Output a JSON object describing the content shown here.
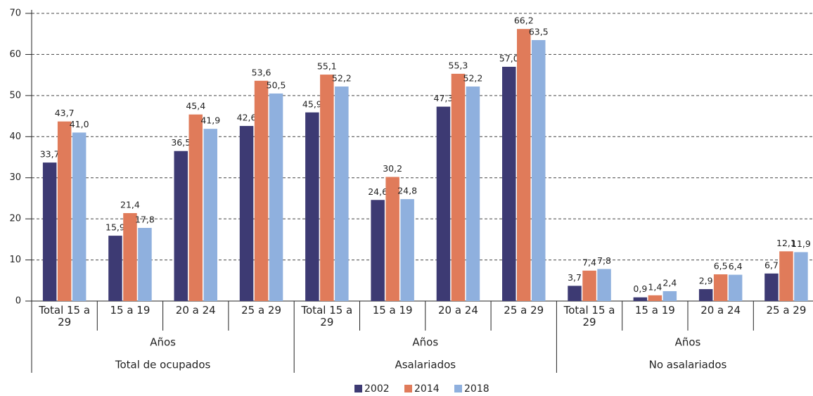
{
  "chart_data": {
    "type": "bar",
    "categories": [
      "Total 15 a 29",
      "15 a 19",
      "20 a 24",
      "25 a 29",
      "Total 15 a 29",
      "15 a 19",
      "20 a 24",
      "25 a 29",
      "Total 15 a 29",
      "15 a 19",
      "20 a 24",
      "25 a 29"
    ],
    "groups": [
      {
        "name": "Total de ocupados",
        "label": "Años"
      },
      {
        "name": "Asalariados",
        "label": "Años"
      },
      {
        "name": "No asalariados",
        "label": "Años"
      }
    ],
    "series": [
      {
        "name": "2002",
        "color": "#3d3a73",
        "values": [
          33.7,
          15.9,
          36.5,
          42.6,
          45.9,
          24.6,
          47.3,
          57.0,
          3.7,
          0.9,
          2.9,
          6.7
        ],
        "value_labels": [
          "33,7",
          "15,9",
          "36,5",
          "42,6",
          "45,9",
          "24,6",
          "47,3",
          "57,0",
          "3,7",
          "0,9",
          "2,9",
          "6,7"
        ]
      },
      {
        "name": "2014",
        "color": "#e07b5a",
        "values": [
          43.7,
          21.4,
          45.4,
          53.6,
          55.1,
          30.2,
          55.3,
          66.2,
          7.4,
          1.4,
          6.5,
          12.1
        ],
        "value_labels": [
          "43,7",
          "21,4",
          "45,4",
          "53,6",
          "55,1",
          "30,2",
          "55,3",
          "66,2",
          "7,4",
          "1,4",
          "6,5",
          "12,1"
        ]
      },
      {
        "name": "2018",
        "color": "#8fb0de",
        "values": [
          41.0,
          17.8,
          41.9,
          50.5,
          52.2,
          24.8,
          52.2,
          63.5,
          7.8,
          2.4,
          6.4,
          11.9
        ],
        "value_labels": [
          "41,0",
          "17,8",
          "41,9",
          "50,5",
          "52,2",
          "24,8",
          "52,2",
          "63,5",
          "7,8",
          "2,4",
          "6,4",
          "11,9"
        ]
      }
    ],
    "ylim": [
      0,
      70
    ],
    "yticks": [
      0,
      10,
      20,
      30,
      40,
      50,
      60,
      70
    ],
    "grid": true,
    "legend": "bottom"
  }
}
